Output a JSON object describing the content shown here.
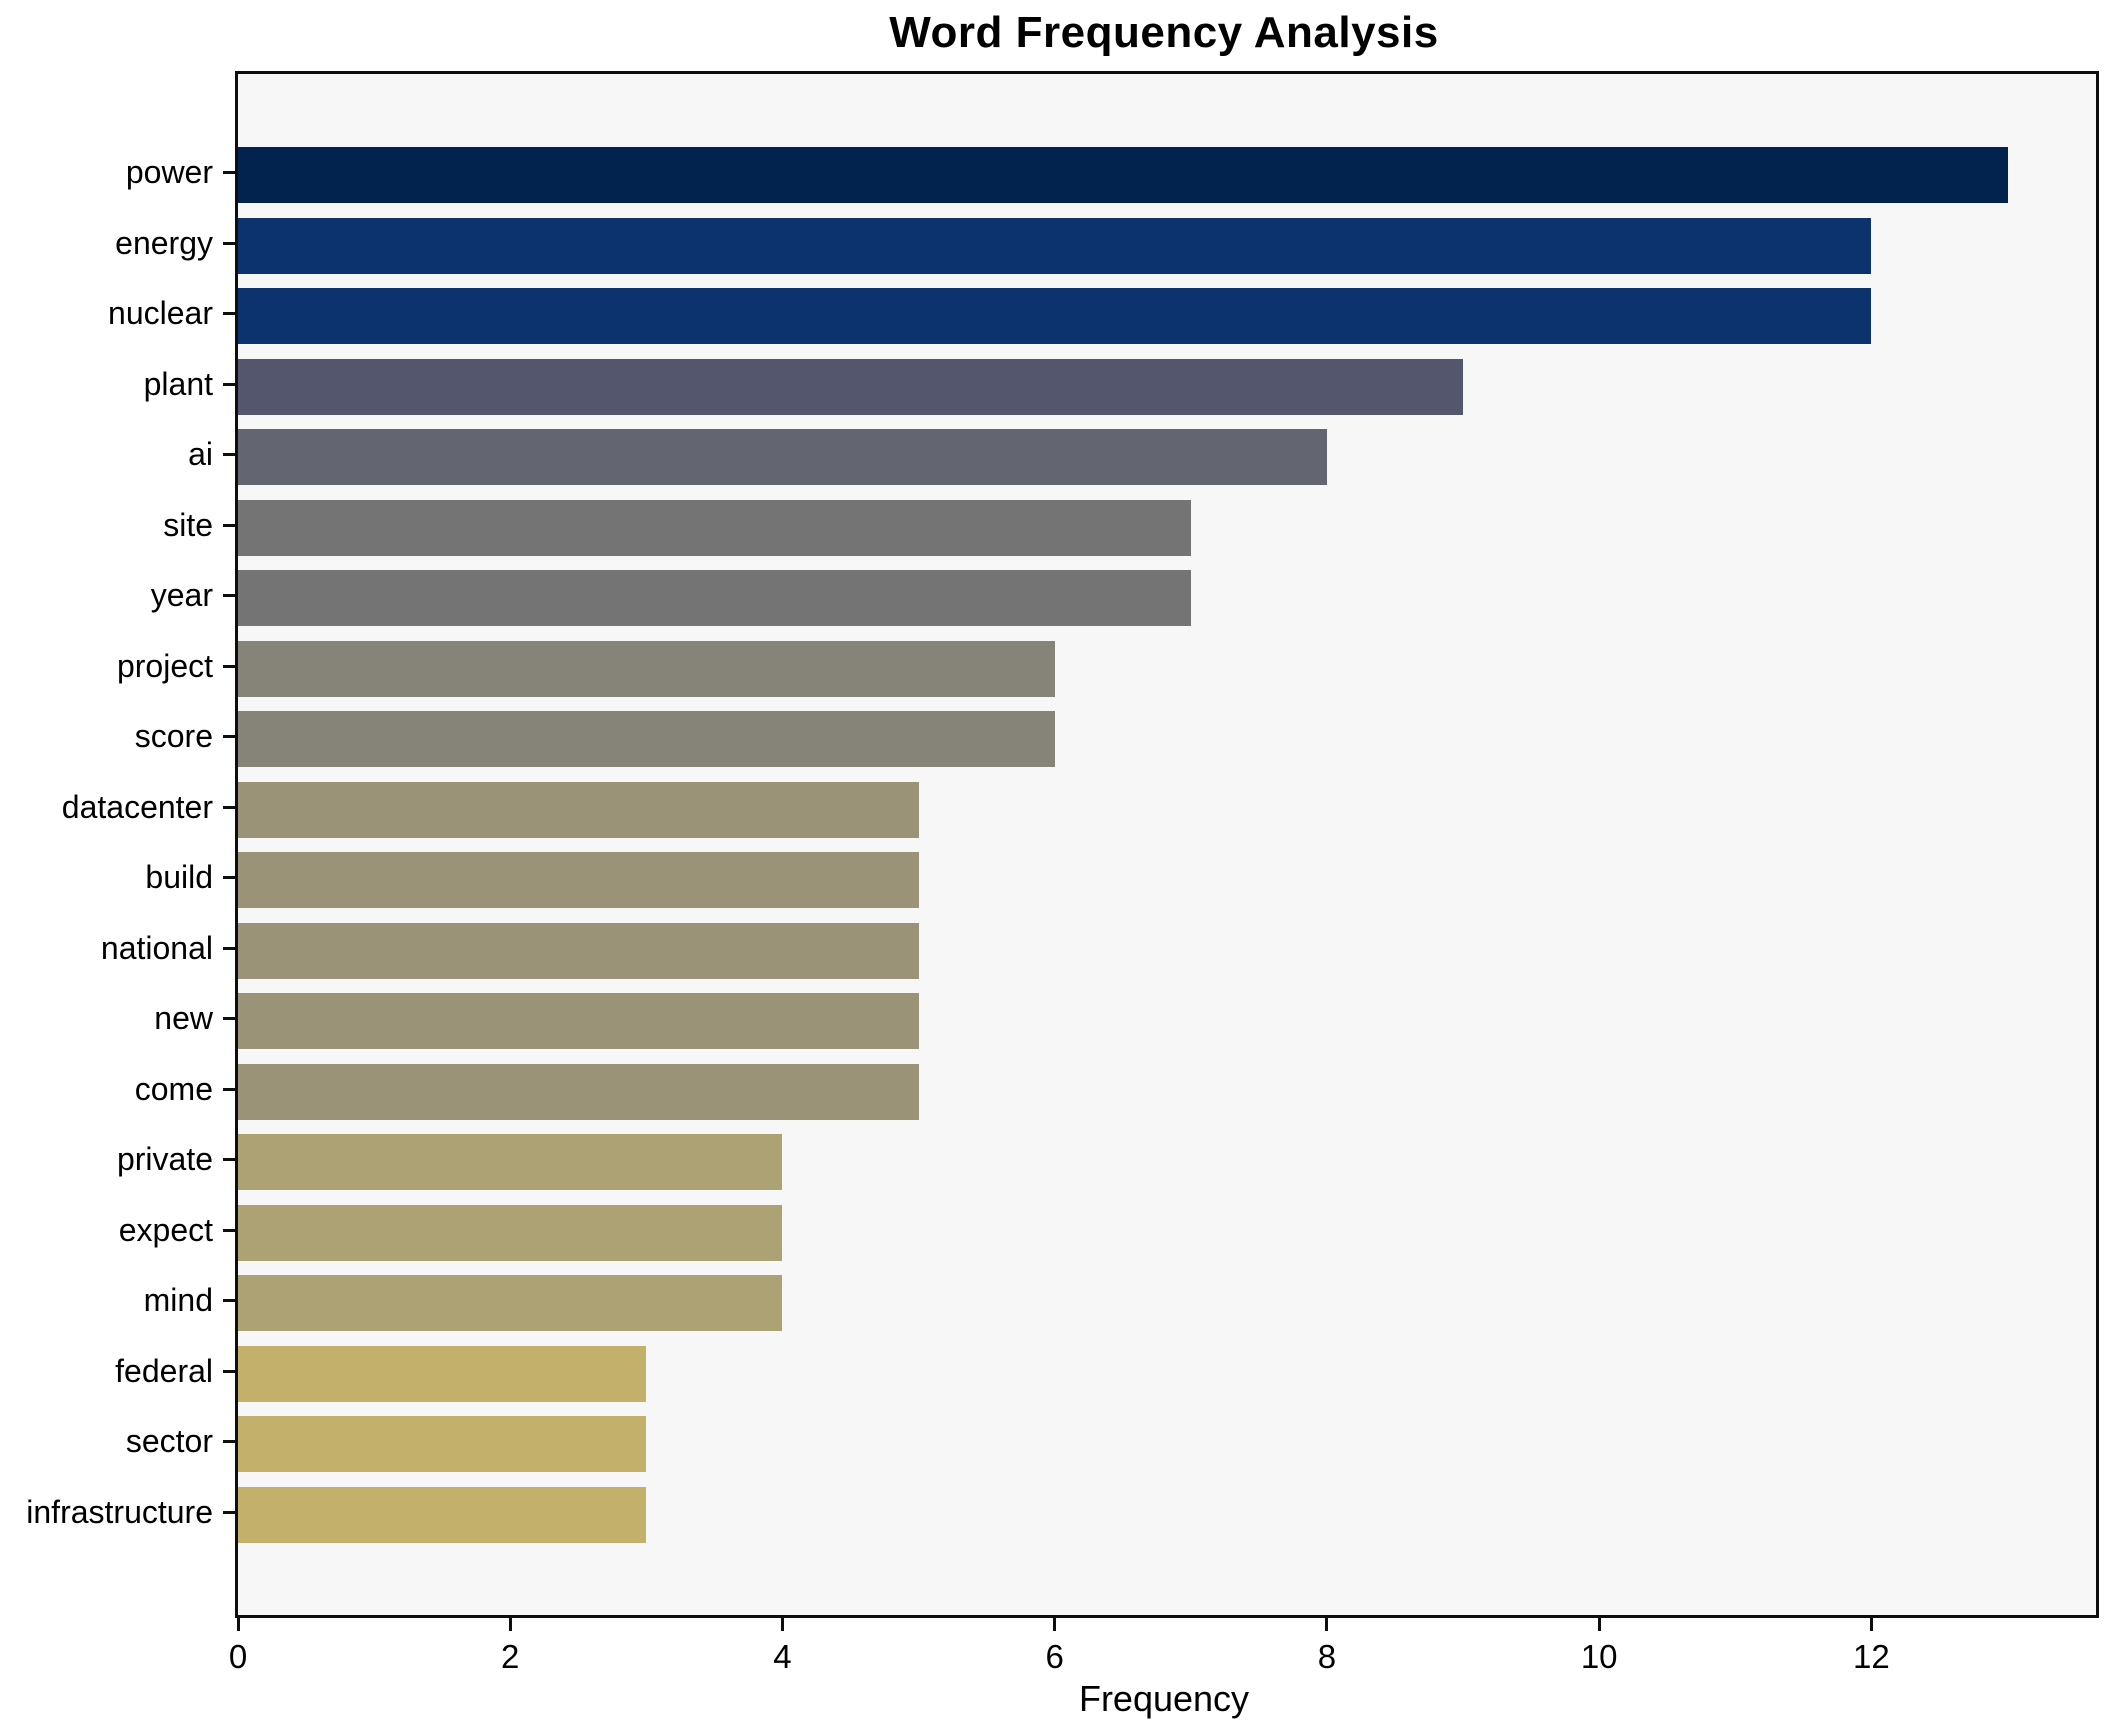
{
  "chart_data": {
    "type": "bar",
    "orientation": "horizontal",
    "title": "Word Frequency Analysis",
    "xlabel": "Frequency",
    "ylabel": "",
    "categories": [
      "power",
      "energy",
      "nuclear",
      "plant",
      "ai",
      "site",
      "year",
      "project",
      "score",
      "datacenter",
      "build",
      "national",
      "new",
      "come",
      "private",
      "expect",
      "mind",
      "federal",
      "sector",
      "infrastructure"
    ],
    "values": [
      13,
      12,
      12,
      9,
      8,
      7,
      7,
      6,
      6,
      5,
      5,
      5,
      5,
      5,
      4,
      4,
      4,
      3,
      3,
      3
    ],
    "bar_colors": [
      "#02234e",
      "#0d336f",
      "#0d336f",
      "#53566c",
      "#636570",
      "#747475",
      "#747475",
      "#868379",
      "#868379",
      "#9a9377",
      "#9a9377",
      "#9a9377",
      "#9a9377",
      "#9a9377",
      "#ada273",
      "#ada273",
      "#ada273",
      "#c3b06a",
      "#c3b06a",
      "#c3b06a"
    ],
    "xticks": [
      0,
      2,
      4,
      6,
      8,
      10,
      12
    ],
    "xlim": [
      0,
      13.65
    ],
    "grid": false,
    "legend": "none",
    "colormap": "cividis",
    "plot_bg": "#f7f7f7",
    "figure_bg": "#ffffff",
    "spine_color": "#0e0e0e",
    "text_color": "#000000"
  }
}
